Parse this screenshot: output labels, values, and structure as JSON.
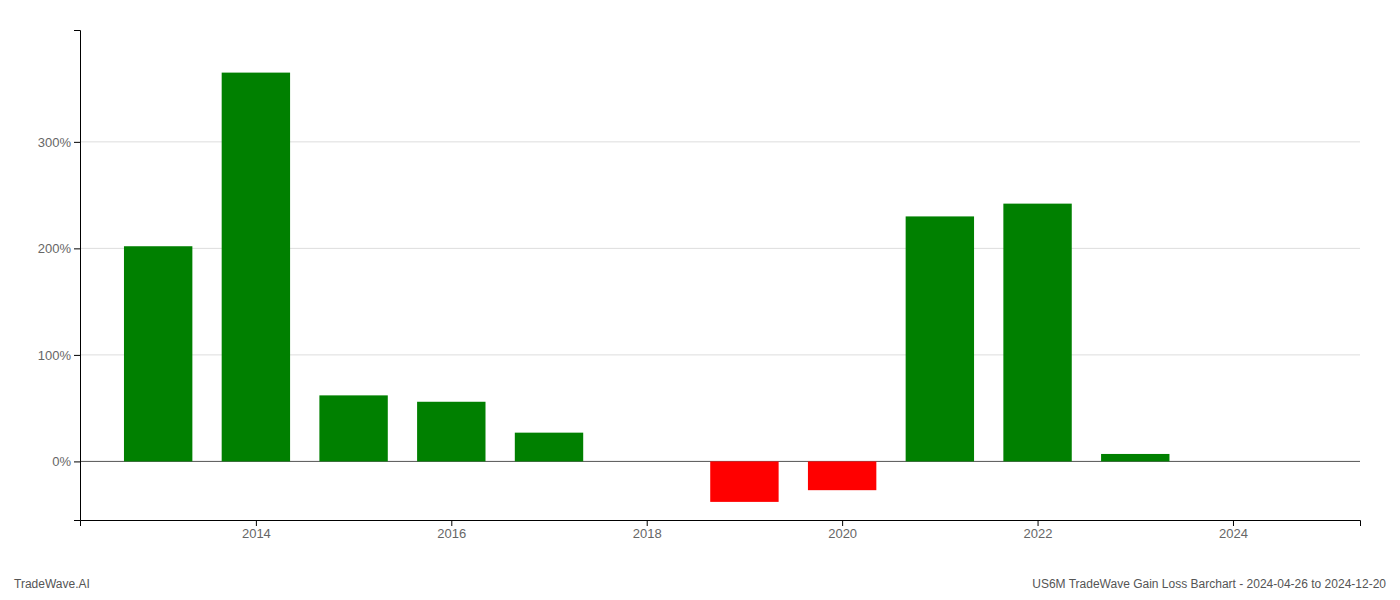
{
  "chart_data": {
    "type": "bar",
    "x": [
      2013,
      2014,
      2015,
      2016,
      2017,
      2018,
      2019,
      2020,
      2021,
      2022,
      2023,
      2024
    ],
    "values": [
      2.02,
      3.65,
      0.62,
      0.56,
      0.27,
      0.0,
      -0.38,
      -0.27,
      2.3,
      2.42,
      0.07,
      0.0
    ],
    "colors": [
      "#008000",
      "#008000",
      "#008000",
      "#008000",
      "#008000",
      "#008000",
      "#ff0000",
      "#ff0000",
      "#008000",
      "#008000",
      "#008000",
      "#008000"
    ],
    "xlim": [
      2012.2,
      2025.3
    ],
    "ylim": [
      -0.55,
      4.05
    ],
    "xticks": [
      2014,
      2016,
      2018,
      2020,
      2022,
      2024
    ],
    "yticks": [
      {
        "value": 0.0,
        "label": "0%"
      },
      {
        "value": 1.0,
        "label": "100%"
      },
      {
        "value": 2.0,
        "label": "200%"
      },
      {
        "value": 3.0,
        "label": "300%"
      }
    ],
    "grid": true,
    "annotations": [
      "TradeWave.AI",
      "US6M TradeWave Gain Loss Barchart - 2024-04-26 to 2024-12-20"
    ]
  }
}
